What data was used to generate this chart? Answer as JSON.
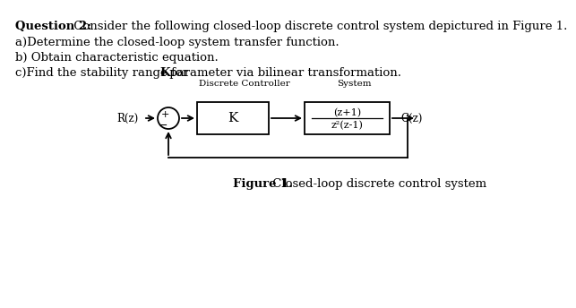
{
  "title_bold": "Question 2:",
  "title_rest": " Consider the following closed-loop discrete control system depictured in Figure 1.",
  "line_a": "a)Determine the closed-loop system transfer function.",
  "line_b": "b) Obtain characteristic equation.",
  "line_c_pre": "c)Find the stability range for ",
  "line_c_bold": "K",
  "line_c_post": " parameter via bilinear transformation.",
  "label_discrete_controller": "Discrete Controller",
  "label_system": "System",
  "label_R": "R(z)",
  "label_C": "C(z)",
  "label_K": "K",
  "label_plus": "+",
  "label_minus": "−",
  "tf_numerator": "(z+1)",
  "tf_denominator": "z²(z-1)",
  "figure_caption_bold": "Figure 1.",
  "figure_caption_rest": " Closed-loop discrete control system",
  "bg_color": "#ffffff",
  "box_color": "#000000",
  "text_color": "#000000",
  "font_size_body": 9.5,
  "font_size_diagram": 8.5,
  "font_size_caption": 9.5
}
